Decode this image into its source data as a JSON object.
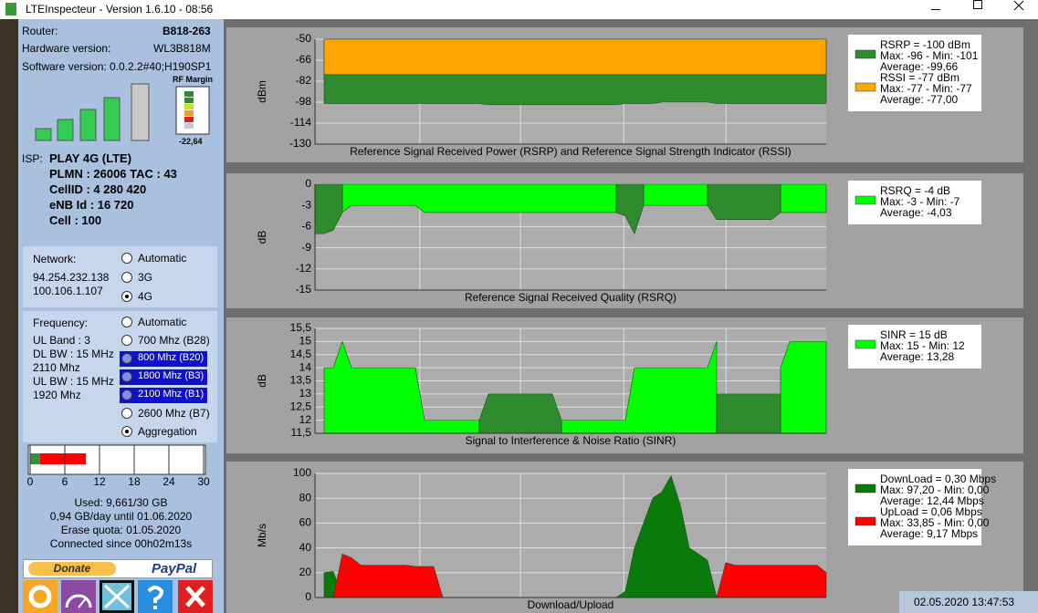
{
  "window": {
    "title": "LTEInspecteur - Version 1.6.10 - 08:56"
  },
  "device": {
    "rows": [
      {
        "label": "Router:",
        "value": "B818-263"
      },
      {
        "label": "Hardware version:",
        "value": "WL3B818M"
      },
      {
        "label": "Software version:",
        "value": "0.0.2.2#40;H190SP1"
      }
    ]
  },
  "rf_margin": {
    "label": "RF Margin",
    "value": "-22,64"
  },
  "isp": {
    "label": "ISP:",
    "lines": [
      "PLAY 4G (LTE)",
      "PLMN : 26006 TAC : 43",
      "CellID : 4 280 420",
      "eNB Id : 16 720",
      "Cell : 100"
    ]
  },
  "network": {
    "label": "Network:",
    "addresses": [
      "94.254.232.138",
      "100.106.1.107"
    ],
    "options": [
      "Automatic",
      "3G",
      "4G"
    ],
    "selected": 2
  },
  "frequency": {
    "label": "Frequency:",
    "info": [
      "UL Band : 3",
      "DL BW : 15 MHz",
      "2110 Mhz",
      "UL BW : 15 MHz",
      "1920 Mhz"
    ],
    "options": [
      "Automatic",
      "700 Mhz (B28)",
      "800 Mhz (B20)",
      "1800 Mhz (B3)",
      "2100 Mhz (B1)",
      "2600 Mhz (B7)",
      "Aggregation"
    ],
    "highlighted": [
      2,
      3,
      4
    ],
    "selected": 6
  },
  "usage": {
    "xlim": [
      0,
      30
    ],
    "xticks": [
      0,
      6,
      12,
      18,
      24,
      30
    ],
    "segments": [
      {
        "color": "#3a8f3a",
        "value": 1.7
      },
      {
        "color": "#ff0000",
        "value": 7.96
      }
    ],
    "lines": [
      "Used: 9,661/30 GB",
      "0,94 GB/day until 01.06.2020",
      "Erase quota: 01.05.2020",
      "Connected since 00h02m13s"
    ]
  },
  "donate": {
    "donate": "Donate",
    "paypal": "PayPal"
  },
  "chart_data": [
    {
      "type": "area",
      "title": "Reference Signal Received Power (RSRP) and Reference Signal Strength Indicator (RSSI)",
      "y_label": "dBm",
      "ylim": [
        -130,
        -50
      ],
      "yticks": [
        -50,
        -66,
        -82,
        -98,
        -114,
        -130
      ],
      "grid": true,
      "series": [
        {
          "name": "RSRP = -100 dBm",
          "stats": [
            "Max: -96 - Min: -101",
            "Average: -99,66"
          ],
          "color": "#2e8b2e",
          "values": [
            null,
            -99,
            -99,
            -99,
            -99,
            -99,
            -99,
            -99,
            -99,
            -99,
            -99,
            -99,
            -99,
            -99,
            -99,
            -99,
            -99,
            -99,
            -99,
            -100,
            -100,
            -100,
            -100,
            -100,
            -100,
            -100,
            -100,
            -100,
            -100,
            -100,
            -100,
            -100,
            -100,
            -100,
            -99,
            -99,
            -99,
            -99,
            -98,
            -98,
            -98,
            -98,
            -98,
            -98,
            -99,
            -99,
            -99,
            -99,
            -99,
            -99,
            -99,
            -99,
            -99,
            -99,
            -99,
            -99,
            -99
          ]
        },
        {
          "name": "RSSI = -77 dBm",
          "stats": [
            "Max: -77 - Min: -77",
            "Average: -77,00"
          ],
          "color": "#ffa500",
          "values": [
            null,
            -77,
            -77,
            -77,
            -77,
            -77,
            -77,
            -77,
            -77,
            -77,
            -77,
            -77,
            -77,
            -77,
            -77,
            -77,
            -77,
            -77,
            -77,
            -77,
            -77,
            -77,
            -77,
            -77,
            -77,
            -77,
            -77,
            -77,
            -77,
            -77,
            -77,
            -77,
            -77,
            -77,
            -77,
            -77,
            -77,
            -77,
            -77,
            -77,
            -77,
            -77,
            -77,
            -77,
            -77,
            -77,
            -77,
            -77,
            -77,
            -77,
            -77,
            -77,
            -77,
            -77,
            -77,
            -77,
            -77
          ]
        }
      ]
    },
    {
      "type": "area",
      "title": "Reference Signal Received Quality (RSRQ)",
      "y_label": "dB",
      "ylim": [
        -15,
        0
      ],
      "yticks": [
        0,
        -3,
        -6,
        -9,
        -12,
        -15
      ],
      "grid": true,
      "series": [
        {
          "name": "RSRQ = -4 dB",
          "stats": [
            "Max: -3 - Min: -7",
            "Average: -4,03"
          ],
          "color": "#00ff00",
          "values": [
            null,
            null,
            null,
            -4,
            -3,
            -3,
            -3,
            -3,
            -3,
            -3,
            -3,
            -3,
            -4,
            -4,
            -4,
            -4,
            -4,
            -4,
            -4,
            -4,
            -4,
            -4,
            -4,
            -4,
            -4,
            -4,
            -4,
            -4,
            -4,
            -4,
            -4,
            -4,
            -4,
            -4,
            null,
            null,
            -3,
            -3,
            -3,
            -3,
            -3,
            -3,
            -3,
            -3,
            null,
            null,
            null,
            null,
            null,
            null,
            null,
            -4,
            -4,
            -4,
            -4,
            -4,
            -4
          ]
        },
        {
          "color": "#2e8b2e",
          "values": [
            -7,
            -7,
            -6.5,
            -4,
            null,
            null,
            null,
            null,
            null,
            null,
            null,
            null,
            null,
            null,
            null,
            null,
            null,
            null,
            null,
            null,
            null,
            null,
            null,
            null,
            null,
            null,
            null,
            null,
            null,
            null,
            null,
            null,
            null,
            -4,
            -4.5,
            -7,
            -3,
            null,
            null,
            null,
            null,
            null,
            null,
            -3,
            -5,
            -5,
            -5,
            -5,
            -5,
            -5,
            -5,
            -4,
            null,
            null,
            null,
            null,
            null
          ]
        }
      ]
    },
    {
      "type": "area",
      "title": "Signal to Interference & Noise Ratio (SINR)",
      "y_label": "dB",
      "ylim": [
        11.5,
        15.5
      ],
      "yticks": [
        {
          "value": 15.5,
          "label": "15,5"
        },
        15,
        {
          "value": 14.5,
          "label": "14,5"
        },
        14,
        {
          "value": 13.5,
          "label": "13,5"
        },
        13,
        {
          "value": 12.5,
          "label": "12,5"
        },
        12,
        {
          "value": 11.5,
          "label": "11,5"
        }
      ],
      "grid": true,
      "series": [
        {
          "name": "SINR = 15 dB",
          "stats": [
            "Max: 15 - Min: 12",
            "Average: 13,28"
          ],
          "color": "#00ff00",
          "values": [
            null,
            14,
            14,
            15,
            14,
            14,
            14,
            14,
            14,
            14,
            14,
            14,
            12,
            12,
            12,
            12,
            12,
            12,
            12,
            null,
            null,
            null,
            null,
            null,
            null,
            null,
            null,
            12,
            12,
            12,
            12,
            12,
            12,
            12,
            12,
            14,
            14,
            14,
            14,
            14,
            14,
            14,
            14,
            14,
            15,
            null,
            null,
            null,
            null,
            null,
            null,
            14,
            15,
            15,
            15,
            15,
            15
          ]
        },
        {
          "color": "#2e8b2e",
          "values": [
            null,
            null,
            null,
            null,
            null,
            null,
            null,
            null,
            null,
            null,
            null,
            null,
            null,
            null,
            null,
            null,
            null,
            null,
            12,
            13,
            13,
            13,
            13,
            13,
            13,
            13,
            13,
            12,
            null,
            null,
            null,
            null,
            null,
            null,
            null,
            null,
            null,
            null,
            null,
            null,
            null,
            null,
            null,
            null,
            13,
            13,
            13,
            13,
            13,
            13,
            13,
            13,
            null,
            null,
            null,
            null,
            null
          ]
        }
      ]
    },
    {
      "type": "area",
      "title": "Download/Upload",
      "y_label": "Mb/s",
      "ylim": [
        0,
        100
      ],
      "yticks": [
        100,
        80,
        60,
        40,
        20,
        0
      ],
      "grid": true,
      "series": [
        {
          "name": "DownLoad = 0,30 Mbps",
          "stats": [
            "Max: 97,20 - Min: 0,00",
            "Average: 12,44 Mbps"
          ],
          "color": "#0a7a0a",
          "values": [
            null,
            20,
            21,
            0,
            0,
            0,
            0,
            0,
            0,
            0,
            0,
            0,
            0,
            0,
            0,
            0,
            0,
            0,
            0,
            0,
            0,
            0,
            0,
            0,
            0,
            0,
            0,
            0,
            0,
            0,
            0,
            0,
            0,
            0,
            5,
            40,
            60,
            80,
            85,
            98,
            75,
            40,
            35,
            30,
            0,
            0,
            0,
            0,
            0,
            0,
            0,
            0,
            0,
            0,
            0,
            0,
            0
          ]
        },
        {
          "name": "UpLoad = 0,06 Mbps",
          "stats": [
            "Max: 33,85 - Min: 0,00",
            "Average: 9,17 Mbps"
          ],
          "color": "#ff0000",
          "values": [
            null,
            0,
            0,
            35,
            32,
            26,
            26,
            26,
            26,
            26,
            26,
            25,
            25,
            25,
            0,
            0,
            0,
            0,
            0,
            0,
            0,
            0,
            0,
            0,
            0,
            0,
            0,
            0,
            0,
            0,
            0,
            0,
            0,
            0,
            0,
            0,
            0,
            0,
            0,
            0,
            0,
            0,
            0,
            0,
            0,
            28,
            26,
            26,
            26,
            26,
            26,
            26,
            26,
            26,
            26,
            26,
            20
          ]
        }
      ]
    }
  ],
  "status": "02.05.2020 13:47:53"
}
